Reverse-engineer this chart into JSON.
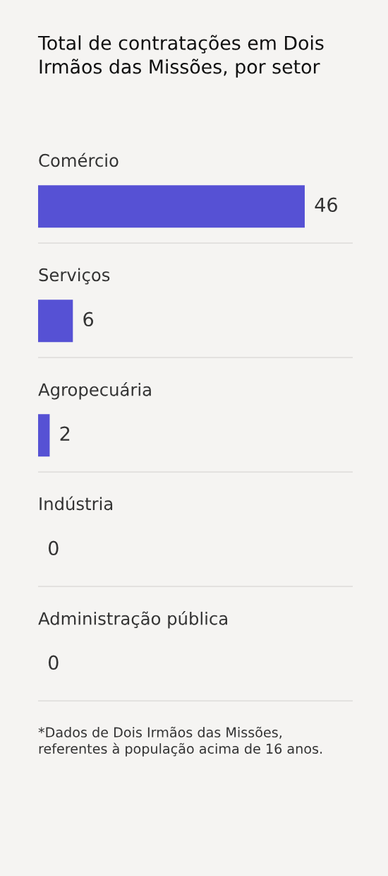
{
  "chart_data": {
    "type": "bar",
    "orientation": "horizontal",
    "title": "Total de contratações em Dois Irmãos das Missões, por setor",
    "categories": [
      "Comércio",
      "Serviços",
      "Agropecuária",
      "Indústria",
      "Administração pública"
    ],
    "values": [
      46,
      6,
      2,
      0,
      0
    ],
    "color": "#5651d4",
    "data_labels": true,
    "grid": "y",
    "annotations": [
      "*Dados de Dois Irmãos das Missões, referentes à população acima de 16 anos."
    ]
  }
}
